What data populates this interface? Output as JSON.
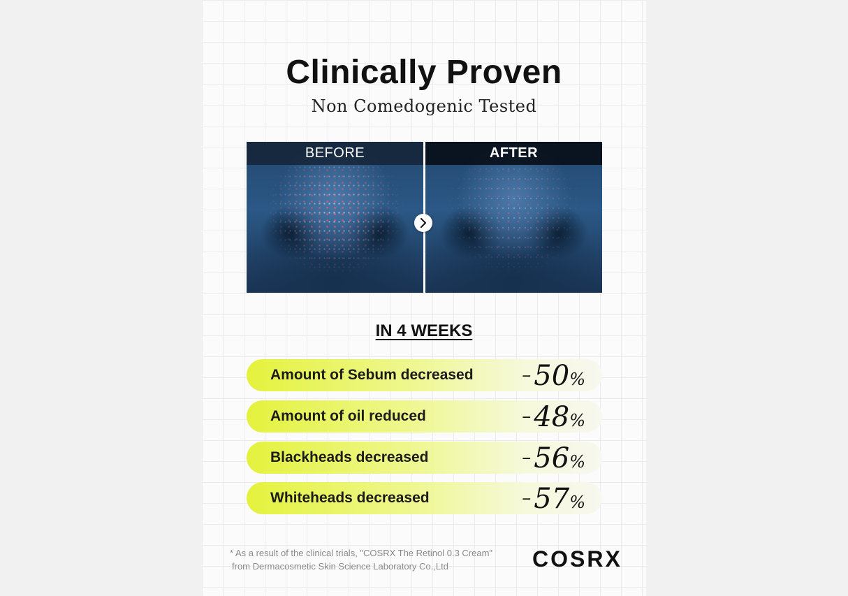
{
  "header": {
    "title": "Clinically Proven",
    "subtitle": "Non Comedogenic Tested"
  },
  "comparison": {
    "before_label": "BEFORE",
    "after_label": "AFTER",
    "arrow_icon": "chevron-right-icon"
  },
  "period": "IN 4 WEEKS",
  "stats": [
    {
      "label": "Amount of Sebum decreased",
      "sign": "–",
      "value": "50",
      "unit": "%"
    },
    {
      "label": "Amount of oil reduced",
      "sign": "–",
      "value": "48",
      "unit": "%"
    },
    {
      "label": "Blackheads decreased",
      "sign": "–",
      "value": "56",
      "unit": "%"
    },
    {
      "label": "Whiteheads decreased",
      "sign": "–",
      "value": "57",
      "unit": "%"
    }
  ],
  "footnote": {
    "line1": "* As a result of the clinical trials, \"COSRX The Retinol 0.3 Cream\"",
    "line2": "from Dermacosmetic Skin Science Laboratory Co.,Ltd"
  },
  "brand": "COSRX",
  "colors": {
    "pill_accent": "#e4f23d",
    "photo_label_bg": "#142234"
  }
}
